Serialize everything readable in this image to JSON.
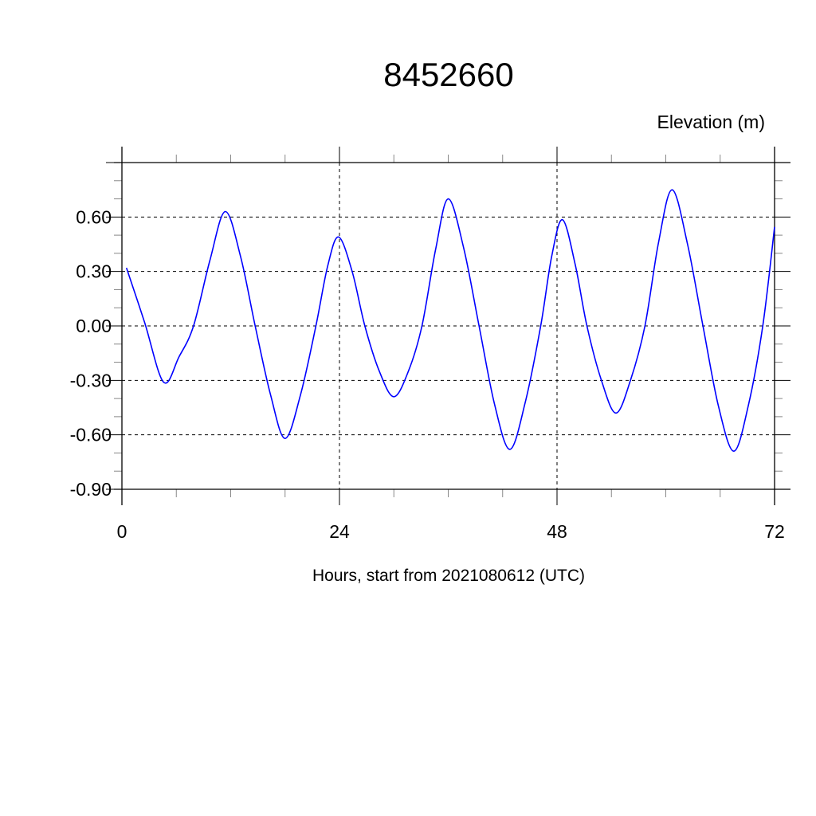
{
  "chart_data": {
    "type": "line",
    "title": "8452660",
    "ylabel": "Elevation (m)",
    "xlabel": "Hours, start from 2021080612 (UTC)",
    "xlim": [
      0,
      72
    ],
    "ylim": [
      -0.9,
      0.9
    ],
    "x_ticks": [
      0,
      24,
      48,
      72
    ],
    "x_tick_labels": [
      "0",
      "24",
      "48",
      "72"
    ],
    "y_ticks": [
      0.6,
      0.3,
      0.0,
      -0.3,
      -0.6,
      -0.9
    ],
    "y_tick_labels": [
      "0.60",
      "0.30",
      "0.00",
      "-0.30",
      "-0.60",
      "-0.90"
    ],
    "grid": true,
    "series": [
      {
        "color": "#0000ff",
        "x": [
          0.5,
          2.5,
          4.6,
          6.3,
          7.9,
          9.7,
          11.4,
          13.1,
          14.7,
          16.4,
          18.0,
          19.7,
          21.4,
          22.7,
          23.9,
          25.4,
          26.8,
          28.4,
          30.0,
          31.6,
          33.1,
          34.6,
          36.0,
          37.7,
          39.4,
          41.1,
          42.8,
          44.5,
          46.2,
          47.4,
          48.6,
          50.0,
          51.3,
          52.9,
          54.5,
          56.1,
          57.7,
          59.2,
          60.7,
          62.4,
          64.1,
          65.8,
          67.5,
          69.1,
          70.7,
          72.0
        ],
        "y": [
          0.32,
          0.02,
          -0.31,
          -0.17,
          0.0,
          0.36,
          0.63,
          0.38,
          0.0,
          -0.38,
          -0.62,
          -0.38,
          0.0,
          0.33,
          0.49,
          0.3,
          0.0,
          -0.25,
          -0.39,
          -0.25,
          0.0,
          0.42,
          0.7,
          0.43,
          0.0,
          -0.43,
          -0.68,
          -0.42,
          0.0,
          0.38,
          0.585,
          0.34,
          0.0,
          -0.3,
          -0.48,
          -0.3,
          0.0,
          0.46,
          0.75,
          0.45,
          0.0,
          -0.44,
          -0.69,
          -0.44,
          0.0,
          0.545
        ]
      }
    ]
  }
}
